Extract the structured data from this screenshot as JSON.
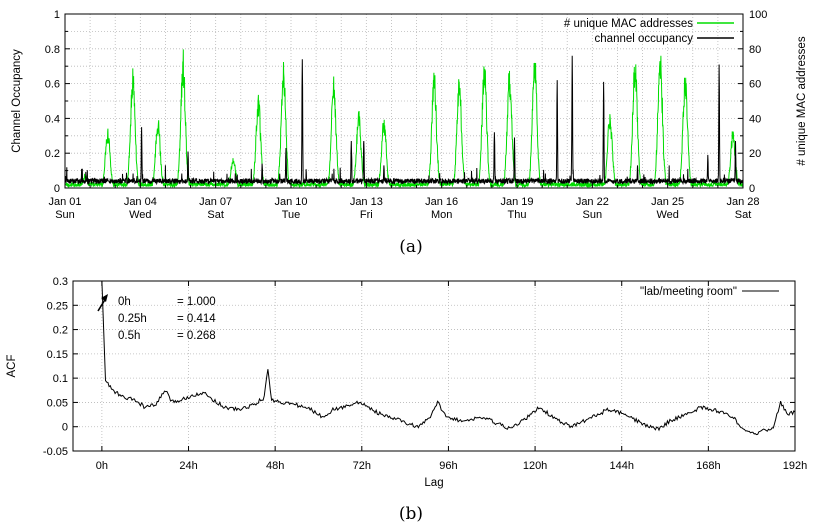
{
  "chart_data": [
    {
      "type": "line",
      "caption": "(a)",
      "ylabel": "Channel Occupancy",
      "y2label": "# unique MAC addresses",
      "ylim": [
        0,
        1
      ],
      "y2lim": [
        0,
        100
      ],
      "yticks": [
        "0",
        "0.2",
        "0.4",
        "0.6",
        "0.8",
        "1"
      ],
      "y2ticks": [
        "0",
        "20",
        "40",
        "60",
        "80",
        "100"
      ],
      "xlim": [
        0,
        27
      ],
      "xticks": [
        {
          "x": 0,
          "date": "Jan 01",
          "day": "Sun"
        },
        {
          "x": 3,
          "date": "Jan 04",
          "day": "Wed"
        },
        {
          "x": 6,
          "date": "Jan 07",
          "day": "Sat"
        },
        {
          "x": 9,
          "date": "Jan 10",
          "day": "Tue"
        },
        {
          "x": 12,
          "date": "Jan 13",
          "day": "Fri"
        },
        {
          "x": 15,
          "date": "Jan 16",
          "day": "Mon"
        },
        {
          "x": 18,
          "date": "Jan 19",
          "day": "Thu"
        },
        {
          "x": 21,
          "date": "Jan 22",
          "day": "Sun"
        },
        {
          "x": 24,
          "date": "Jan 25",
          "day": "Wed"
        },
        {
          "x": 27,
          "date": "Jan 28",
          "day": "Sat"
        }
      ],
      "grid": true,
      "legend_position": "top-right",
      "series": [
        {
          "name": "# unique MAC addresses",
          "axis": "right",
          "color": "#00dd00",
          "baseline": 2,
          "peaks": [
            {
              "day": 0.8,
              "value": 8
            },
            {
              "day": 1.7,
              "value": 35
            },
            {
              "day": 2.7,
              "value": 68
            },
            {
              "day": 3.7,
              "value": 42
            },
            {
              "day": 4.7,
              "value": 79
            },
            {
              "day": 6.7,
              "value": 18
            },
            {
              "day": 7.7,
              "value": 55
            },
            {
              "day": 8.7,
              "value": 73
            },
            {
              "day": 10.7,
              "value": 65
            },
            {
              "day": 11.7,
              "value": 44
            },
            {
              "day": 12.7,
              "value": 42
            },
            {
              "day": 14.7,
              "value": 69
            },
            {
              "day": 15.7,
              "value": 65
            },
            {
              "day": 16.7,
              "value": 75
            },
            {
              "day": 17.7,
              "value": 70
            },
            {
              "day": 18.7,
              "value": 80
            },
            {
              "day": 21.7,
              "value": 45
            },
            {
              "day": 22.7,
              "value": 78
            },
            {
              "day": 23.7,
              "value": 82
            },
            {
              "day": 24.7,
              "value": 68
            },
            {
              "day": 26.6,
              "value": 35
            }
          ]
        },
        {
          "name": "channel occupancy",
          "axis": "left",
          "color": "#000000",
          "baseline": 0.04,
          "peaks": [
            {
              "day": 3.05,
              "value": 0.35
            },
            {
              "day": 4.9,
              "value": 0.21
            },
            {
              "day": 7.85,
              "value": 0.14
            },
            {
              "day": 8.8,
              "value": 0.23
            },
            {
              "day": 9.45,
              "value": 0.74
            },
            {
              "day": 11.4,
              "value": 0.27
            },
            {
              "day": 11.9,
              "value": 0.27
            },
            {
              "day": 12.7,
              "value": 0.13
            },
            {
              "day": 17.1,
              "value": 0.32
            },
            {
              "day": 17.9,
              "value": 0.29
            },
            {
              "day": 19.6,
              "value": 0.62
            },
            {
              "day": 20.2,
              "value": 0.76
            },
            {
              "day": 21.45,
              "value": 0.61
            },
            {
              "day": 22.8,
              "value": 0.13
            },
            {
              "day": 25.6,
              "value": 0.19
            },
            {
              "day": 26.05,
              "value": 0.71
            },
            {
              "day": 26.7,
              "value": 0.27
            }
          ]
        }
      ]
    },
    {
      "type": "line",
      "caption": "(b)",
      "xlabel": "Lag",
      "ylabel": "ACF",
      "xlim": [
        -8,
        192
      ],
      "ylim": [
        -0.05,
        0.3
      ],
      "xticks": [
        "0h",
        "24h",
        "48h",
        "72h",
        "96h",
        "120h",
        "144h",
        "168h",
        "192h"
      ],
      "yticks": [
        "-0.05",
        "0",
        "0.05",
        "0.1",
        "0.15",
        "0.2",
        "0.25",
        "0.3"
      ],
      "grid": true,
      "legend_position": "top-right",
      "annotation": {
        "rows": [
          {
            "lag": "0h",
            "value": "= 1.000"
          },
          {
            "lag": "0.25h",
            "value": "= 0.414"
          },
          {
            "lag": "0.5h",
            "value": "= 0.268"
          }
        ]
      },
      "series": [
        {
          "name": "\"lab/meeting room\"",
          "color": "#000000",
          "points": [
            [
              0,
              0.3
            ],
            [
              1,
              0.095
            ],
            [
              3,
              0.075
            ],
            [
              6,
              0.06
            ],
            [
              9,
              0.055
            ],
            [
              12,
              0.04
            ],
            [
              15,
              0.045
            ],
            [
              17,
              0.07
            ],
            [
              18,
              0.075
            ],
            [
              19,
              0.05
            ],
            [
              22,
              0.055
            ],
            [
              25,
              0.065
            ],
            [
              28,
              0.07
            ],
            [
              31,
              0.055
            ],
            [
              34,
              0.04
            ],
            [
              38,
              0.035
            ],
            [
              42,
              0.045
            ],
            [
              45,
              0.06
            ],
            [
              46,
              0.12
            ],
            [
              47,
              0.055
            ],
            [
              50,
              0.05
            ],
            [
              54,
              0.045
            ],
            [
              58,
              0.035
            ],
            [
              61,
              0.02
            ],
            [
              64,
              0.035
            ],
            [
              67,
              0.04
            ],
            [
              70,
              0.05
            ],
            [
              73,
              0.045
            ],
            [
              76,
              0.03
            ],
            [
              79,
              0.02
            ],
            [
              82,
              0.015
            ],
            [
              85,
              0.005
            ],
            [
              88,
              0.0
            ],
            [
              91,
              0.02
            ],
            [
              93,
              0.05
            ],
            [
              95,
              0.025
            ],
            [
              98,
              0.015
            ],
            [
              101,
              0.01
            ],
            [
              104,
              0.02
            ],
            [
              107,
              0.015
            ],
            [
              110,
              0.005
            ],
            [
              113,
              -0.005
            ],
            [
              116,
              0.01
            ],
            [
              119,
              0.025
            ],
            [
              121,
              0.04
            ],
            [
              124,
              0.025
            ],
            [
              127,
              0.01
            ],
            [
              130,
              0.0
            ],
            [
              133,
              0.01
            ],
            [
              136,
              0.02
            ],
            [
              140,
              0.035
            ],
            [
              143,
              0.03
            ],
            [
              146,
              0.02
            ],
            [
              150,
              0.005
            ],
            [
              154,
              -0.005
            ],
            [
              157,
              0.01
            ],
            [
              160,
              0.02
            ],
            [
              163,
              0.03
            ],
            [
              166,
              0.04
            ],
            [
              169,
              0.035
            ],
            [
              172,
              0.03
            ],
            [
              175,
              0.02
            ],
            [
              177,
              -0.005
            ],
            [
              180,
              -0.015
            ],
            [
              183,
              -0.01
            ],
            [
              186,
              0.0
            ],
            [
              188,
              0.05
            ],
            [
              190,
              0.025
            ],
            [
              192,
              0.03
            ]
          ]
        }
      ]
    }
  ]
}
